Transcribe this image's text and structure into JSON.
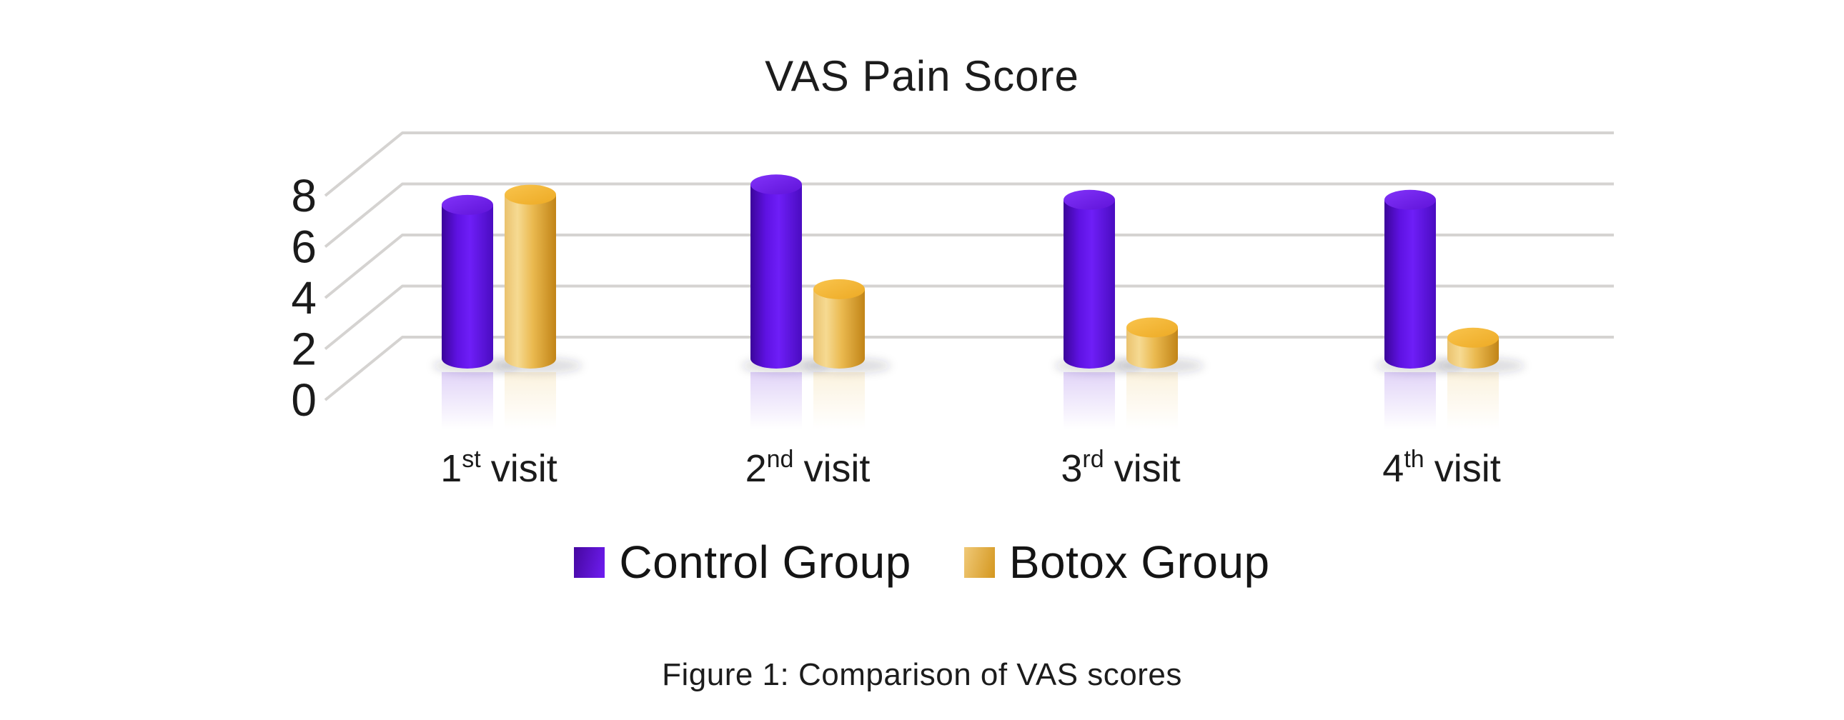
{
  "title": "VAS Pain Score",
  "caption": "Figure 1: Comparison of VAS scores",
  "legend": {
    "items": [
      {
        "label": "Control Group",
        "color": "#5a10d8"
      },
      {
        "label": "Botox Group",
        "color": "#e9b94b"
      }
    ]
  },
  "chart_data": {
    "type": "bar",
    "style": "3d-cylinder",
    "title": "VAS Pain Score",
    "xlabel": "",
    "ylabel": "",
    "ylim": [
      0,
      8
    ],
    "yticks": [
      8,
      6,
      4,
      2,
      0
    ],
    "grid": true,
    "legend_position": "bottom",
    "categories": [
      {
        "num": "1",
        "suffix": "st",
        "word": "visit"
      },
      {
        "num": "2",
        "suffix": "nd",
        "word": "visit"
      },
      {
        "num": "3",
        "suffix": "rd",
        "word": "visit"
      },
      {
        "num": "4",
        "suffix": "th",
        "word": "visit"
      }
    ],
    "series": [
      {
        "name": "Control Group",
        "values": [
          6.8,
          7.6,
          7.0,
          7.0
        ],
        "color": "#5a10d8",
        "body_stops": [
          [
            "0%",
            "#3b059a"
          ],
          [
            "30%",
            "#5e12e2"
          ],
          [
            "55%",
            "#6e1ef7"
          ],
          [
            "100%",
            "#4a0cc0"
          ]
        ],
        "top_stops": [
          [
            "0%",
            "#8233fa"
          ],
          [
            "100%",
            "#5f13d8"
          ]
        ],
        "swatch": [
          "#45079f",
          "#6f1df2"
        ],
        "reflection": "#5a10d8"
      },
      {
        "name": "Botox Group",
        "values": [
          7.2,
          3.5,
          2.0,
          1.6
        ],
        "color": "#e9b94b",
        "body_stops": [
          [
            "0%",
            "#eac26e"
          ],
          [
            "25%",
            "#f6da92"
          ],
          [
            "55%",
            "#eab94f"
          ],
          [
            "100%",
            "#c18417"
          ]
        ],
        "top_stops": [
          [
            "0%",
            "#f9c44d"
          ],
          [
            "100%",
            "#edaa24"
          ]
        ],
        "swatch": [
          "#f0c977",
          "#d4971f"
        ],
        "reflection": "#e9b94b"
      }
    ],
    "gridline_color": "#d5d3d1",
    "text_color": "#1b1b1b"
  }
}
